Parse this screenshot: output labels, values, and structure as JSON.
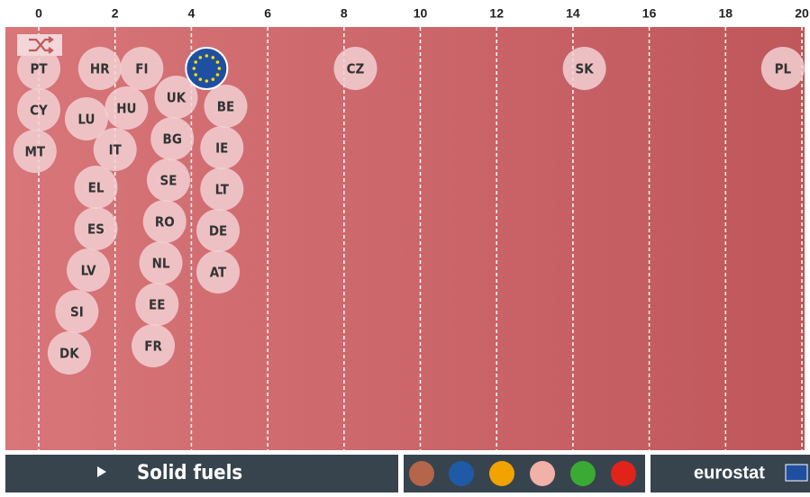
{
  "chart_data": {
    "type": "beeswarm",
    "categories": [
      "PL",
      "SK",
      "CZ",
      "BE",
      "IE",
      "LT",
      "DE",
      "AT",
      "UK",
      "BG",
      "SE",
      "RO",
      "NL",
      "EE",
      "FR",
      "FI",
      "HU",
      "IT",
      "HR",
      "EL",
      "ES",
      "LV",
      "LU",
      "SI",
      "DK",
      "PT",
      "CY",
      "MT"
    ],
    "values": [
      19.5,
      14.3,
      8.3,
      4.9,
      4.8,
      4.8,
      4.7,
      4.7,
      3.6,
      3.5,
      3.4,
      3.3,
      3.2,
      3.1,
      3.0,
      2.7,
      2.3,
      2.0,
      1.6,
      1.5,
      1.5,
      1.3,
      1.25,
      1.0,
      0.8,
      0.0,
      0.0,
      -0.1
    ],
    "reference": {
      "value": 4.4
    },
    "color": "#f2d0d2",
    "xlim": [
      0,
      20
    ],
    "xticks": [
      0,
      2,
      4,
      6,
      8,
      10,
      12,
      14,
      16,
      18,
      20
    ],
    "grid": true,
    "footer": {
      "title": "Solid fuels",
      "brand": "eurostat"
    }
  }
}
